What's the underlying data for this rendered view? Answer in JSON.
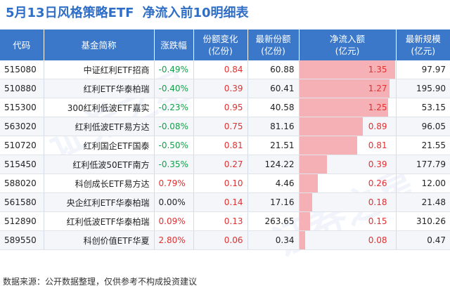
{
  "title": {
    "left": "5月13日风格策略ETF",
    "right": "净流入前10明细表"
  },
  "columns": {
    "code": "代码",
    "name": "基金简称",
    "change": "涨跌幅",
    "share_change_1": "份额变化",
    "share_change_2": "(亿份)",
    "latest_share_1": "最新份额",
    "latest_share_2": "(亿份)",
    "net_inflow_1": "净流入额",
    "net_inflow_2": "(亿元)",
    "latest_scale_1": "最新规模",
    "latest_scale_2": "(亿元)"
  },
  "colors": {
    "header_bg": "#3b78c9",
    "positive": "#e03030",
    "negative": "#15a04a",
    "bar": "#f5a3a9"
  },
  "rows": [
    {
      "code": "515080",
      "name": "中证红利ETF招商",
      "change": "-0.49%",
      "share_change": "0.84",
      "latest_share": "60.88",
      "net_inflow": "1.35",
      "net_inflow_value": 1.35,
      "latest_scale": "97.97"
    },
    {
      "code": "510880",
      "name": "红利ETF华泰柏瑞",
      "change": "-0.40%",
      "share_change": "0.39",
      "latest_share": "60.41",
      "net_inflow": "1.27",
      "net_inflow_value": 1.27,
      "latest_scale": "195.90"
    },
    {
      "code": "515300",
      "name": "300红利低波ETF嘉实",
      "change": "-0.23%",
      "share_change": "0.95",
      "latest_share": "40.58",
      "net_inflow": "1.25",
      "net_inflow_value": 1.25,
      "latest_scale": "53.15"
    },
    {
      "code": "563020",
      "name": "红利低波ETF易方达",
      "change": "-0.08%",
      "share_change": "0.75",
      "latest_share": "81.16",
      "net_inflow": "0.89",
      "net_inflow_value": 0.89,
      "latest_scale": "96.05"
    },
    {
      "code": "510720",
      "name": "红利国企ETF国泰",
      "change": "-0.50%",
      "share_change": "0.81",
      "latest_share": "21.51",
      "net_inflow": "0.81",
      "net_inflow_value": 0.81,
      "latest_scale": "21.55"
    },
    {
      "code": "515450",
      "name": "红利低波50ETF南方",
      "change": "-0.35%",
      "share_change": "0.27",
      "latest_share": "124.22",
      "net_inflow": "0.39",
      "net_inflow_value": 0.39,
      "latest_scale": "177.79"
    },
    {
      "code": "588020",
      "name": "科创成长ETF易方达",
      "change": "0.79%",
      "share_change": "0.10",
      "latest_share": "4.46",
      "net_inflow": "0.26",
      "net_inflow_value": 0.26,
      "latest_scale": "12.00"
    },
    {
      "code": "561580",
      "name": "央企红利ETF华泰柏瑞",
      "change": "0.00%",
      "share_change": "0.14",
      "latest_share": "17.16",
      "net_inflow": "0.18",
      "net_inflow_value": 0.18,
      "latest_scale": "21.48"
    },
    {
      "code": "512890",
      "name": "红利低波ETF华泰柏瑞",
      "change": "0.09%",
      "share_change": "0.13",
      "latest_share": "263.65",
      "net_inflow": "0.15",
      "net_inflow_value": 0.15,
      "latest_scale": "310.26"
    },
    {
      "code": "589550",
      "name": "科创价值ETF华夏",
      "change": "2.80%",
      "share_change": "0.06",
      "latest_share": "0.34",
      "net_inflow": "0.08",
      "net_inflow_value": 0.08,
      "latest_scale": "0.47"
    }
  ],
  "footer": "数据来源：公开数据整理，仅供参考不构成投资建议"
}
